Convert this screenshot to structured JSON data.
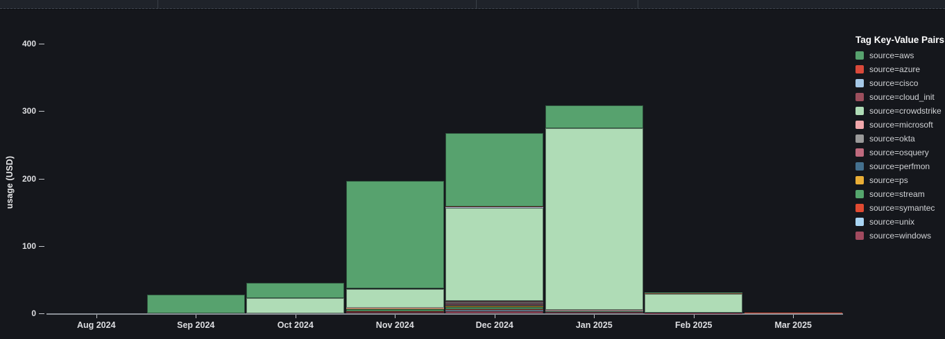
{
  "chart_data": {
    "type": "bar",
    "stacked": true,
    "ylabel": "usage (USD)",
    "legend_title": "Tag Key-Value Pairs",
    "legend_position": "right",
    "grid": false,
    "ylim": [
      0,
      400
    ],
    "y_ticks": [
      0,
      100,
      200,
      300,
      400
    ],
    "categories": [
      "Aug 2024",
      "Sep 2024",
      "Oct 2024",
      "Nov 2024",
      "Dec 2024",
      "Jan 2025",
      "Feb 2025",
      "Mar 2025"
    ],
    "stack_order": "reverse-legend (first series on top)",
    "series": [
      {
        "name": "source=aws",
        "color": "#57a26e",
        "values": [
          0,
          28,
          22,
          160,
          109,
          34,
          0.5,
          0
        ]
      },
      {
        "name": "source=azure",
        "color": "#d9493a",
        "values": [
          0,
          0,
          0,
          0,
          1,
          0,
          2,
          0
        ]
      },
      {
        "name": "source=cisco",
        "color": "#a5c8e6",
        "values": [
          0,
          0,
          0,
          0,
          0.5,
          0,
          0,
          0
        ]
      },
      {
        "name": "source=cloud_init",
        "color": "#9c4f5d",
        "values": [
          0,
          0,
          0,
          0,
          1,
          0,
          0,
          0
        ]
      },
      {
        "name": "source=crowdstrike",
        "color": "#afdcb6",
        "values": [
          0,
          0,
          23,
          28,
          138,
          270,
          28,
          0
        ]
      },
      {
        "name": "source=microsoft",
        "color": "#f1a7ab",
        "values": [
          0,
          0,
          0,
          0.5,
          2,
          0.5,
          0,
          0
        ]
      },
      {
        "name": "source=okta",
        "color": "#9a9a9a",
        "values": [
          0,
          0,
          0,
          0,
          2,
          0.5,
          0,
          0
        ]
      },
      {
        "name": "source=osquery",
        "color": "#bf6a7e",
        "values": [
          0,
          0,
          0,
          0.5,
          2,
          1,
          0,
          0
        ]
      },
      {
        "name": "source=perfmon",
        "color": "#44708e",
        "values": [
          0,
          0,
          0,
          0,
          0.5,
          0,
          0,
          0
        ]
      },
      {
        "name": "source=ps",
        "color": "#eaae36",
        "values": [
          0,
          0,
          0,
          1.5,
          2,
          0,
          0,
          0
        ]
      },
      {
        "name": "source=stream",
        "color": "#55a66d",
        "values": [
          0,
          0,
          0,
          2.5,
          3,
          0.5,
          0,
          0
        ]
      },
      {
        "name": "source=symantec",
        "color": "#e04a31",
        "values": [
          0,
          0,
          0,
          1,
          1.5,
          0,
          0,
          0.5
        ]
      },
      {
        "name": "source=unix",
        "color": "#a9d5f3",
        "values": [
          0,
          0,
          0,
          0,
          1.5,
          0,
          0,
          0
        ]
      },
      {
        "name": "source=windows",
        "color": "#a14a5f",
        "values": [
          0,
          0,
          0,
          2.5,
          3.5,
          2.5,
          0.5,
          1
        ]
      }
    ]
  }
}
